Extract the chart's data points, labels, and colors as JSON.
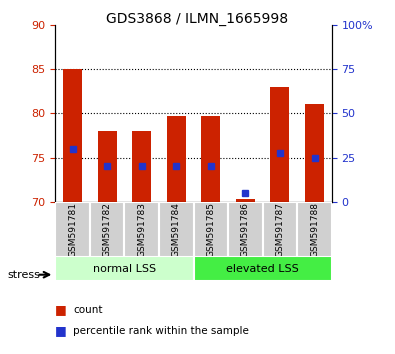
{
  "title": "GDS3868 / ILMN_1665998",
  "samples": [
    "GSM591781",
    "GSM591782",
    "GSM591783",
    "GSM591784",
    "GSM591785",
    "GSM591786",
    "GSM591787",
    "GSM591788"
  ],
  "bar_bottoms": [
    70,
    70,
    70,
    70,
    70,
    70,
    70,
    70
  ],
  "bar_tops": [
    85.0,
    78.0,
    78.0,
    79.7,
    79.7,
    70.3,
    83.0,
    81.0
  ],
  "blue_marks": [
    76.0,
    74.0,
    74.0,
    74.0,
    74.0,
    71.0,
    75.5,
    75.0
  ],
  "ylim": [
    70,
    90
  ],
  "yticks_left": [
    70,
    75,
    80,
    85,
    90
  ],
  "yticks_right": [
    0,
    25,
    50,
    75,
    100
  ],
  "y_right_labels": [
    "0",
    "25",
    "50",
    "75",
    "100%"
  ],
  "bar_color": "#cc2200",
  "blue_color": "#2233cc",
  "group1_label": "normal LSS",
  "group2_label": "elevated LSS",
  "stress_label": "stress",
  "legend_count": "count",
  "legend_pct": "percentile rank within the sample",
  "grid_ticks": [
    75,
    80,
    85
  ],
  "bg_color_group1": "#ccffcc",
  "bg_color_group2": "#44ee44",
  "tick_label_color_left": "#cc2200",
  "tick_label_color_right": "#2233cc"
}
